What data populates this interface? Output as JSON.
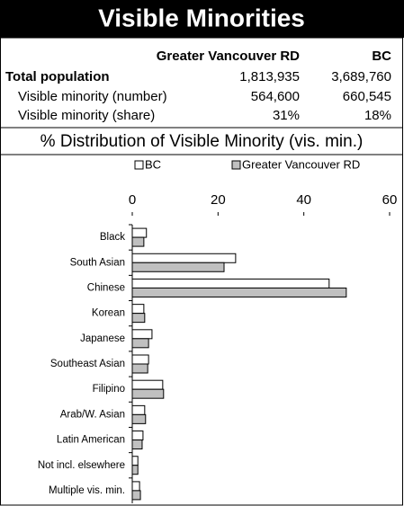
{
  "header": {
    "title": "Visible Minorities"
  },
  "table": {
    "columns": [
      "Greater Vancouver RD",
      "BC"
    ],
    "rows": [
      [
        "Total population",
        "1,813,935",
        "3,689,760"
      ],
      [
        "Visible minority (number)",
        "564,600",
        "660,545"
      ],
      [
        "Visible minority (share)",
        "31%",
        "18%"
      ]
    ]
  },
  "chart_data": {
    "type": "bar",
    "orientation": "horizontal",
    "title": "% Distribution of Visible Minority (vis. min.)",
    "categories": [
      "Black",
      "South Asian",
      "Chinese",
      "Korean",
      "Japanese",
      "Southeast Asian",
      "Filipino",
      "Arab/W. Asian",
      "Latin American",
      "Not incl. elsewhere",
      "Multiple vis. min."
    ],
    "series": [
      {
        "name": "BC",
        "color": "#ffffff",
        "values": [
          3.3,
          24.1,
          45.9,
          2.7,
          4.6,
          3.8,
          7.1,
          2.9,
          2.5,
          1.3,
          1.7
        ]
      },
      {
        "name": "Greater Vancouver RD",
        "color": "#c0c0c0",
        "values": [
          2.7,
          21.4,
          49.9,
          2.9,
          3.8,
          3.6,
          7.3,
          3.1,
          2.3,
          1.3,
          1.9
        ]
      }
    ],
    "xlim": [
      0,
      60
    ],
    "xticks": [
      0,
      20,
      40,
      60
    ],
    "legend": "top"
  }
}
